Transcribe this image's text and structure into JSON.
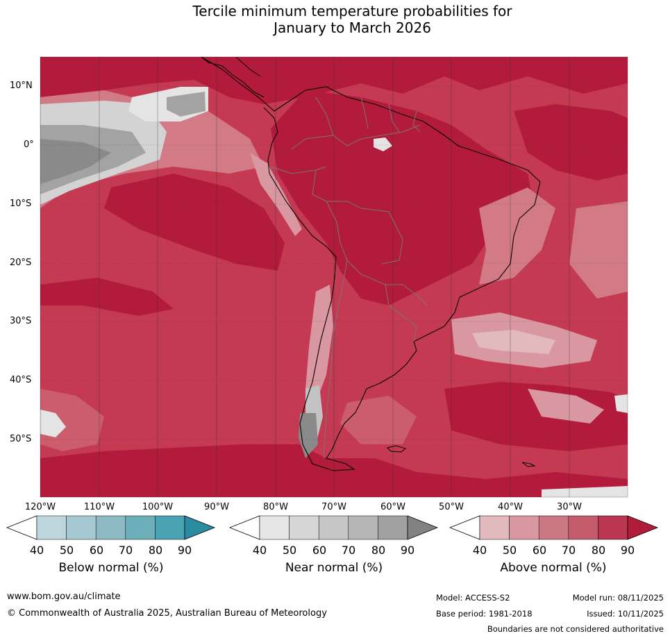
{
  "title": {
    "line1": "Tercile minimum temperature probabilities for",
    "line2": "January to March 2026"
  },
  "map": {
    "lat_labels": [
      "10°N",
      "0°",
      "10°S",
      "20°S",
      "30°S",
      "40°S",
      "50°S"
    ],
    "lon_labels": [
      "120°W",
      "110°W",
      "100°W",
      "90°W",
      "80°W",
      "70°W",
      "60°W",
      "50°W",
      "40°W",
      "30°W"
    ],
    "colors": {
      "above_90": "#b21b3c",
      "above_80": "#c43a53",
      "above_70": "#cc5d6c",
      "above_60": "#d27b87",
      "above_50": "#d998a1",
      "above_40": "#e2b9bd",
      "near_40": "#e4e4e4",
      "near_50": "#d3d3d3",
      "near_60": "#c3c3c3",
      "near_80": "#a3a3a3",
      "near_90": "#8a8a8a"
    }
  },
  "legend": {
    "below": {
      "title": "Below normal (%)",
      "ticks": [
        "40",
        "50",
        "60",
        "70",
        "80",
        "90"
      ],
      "colors": [
        "#ffffff",
        "#bdd6dc",
        "#a6c8d0",
        "#8cb9c4",
        "#6caeb9",
        "#48a2b1",
        "#2b8ba1"
      ]
    },
    "near": {
      "title": "Near normal (%)",
      "ticks": [
        "40",
        "50",
        "60",
        "70",
        "80",
        "90"
      ],
      "colors": [
        "#ffffff",
        "#e6e6e6",
        "#d6d6d6",
        "#c6c6c6",
        "#b6b6b6",
        "#a1a1a1",
        "#828282"
      ]
    },
    "above": {
      "title": "Above normal (%)",
      "ticks": [
        "40",
        "50",
        "60",
        "70",
        "80",
        "90"
      ],
      "colors": [
        "#ffffff",
        "#e2b9bd",
        "#d998a1",
        "#cc7884",
        "#c45c6c",
        "#bb3650",
        "#b11c3b"
      ]
    }
  },
  "footer": {
    "website": "www.bom.gov.au/climate",
    "copyright": "© Commonwealth of Australia 2025, Australian Bureau of Meteorology",
    "model": "Model: ACCESS-S2",
    "model_run": "Model run: 08/11/2025",
    "base_period": "Base period: 1981-2018",
    "issued": "Issued: 10/11/2025",
    "disclaimer": "Boundaries are not considered authoritative"
  }
}
